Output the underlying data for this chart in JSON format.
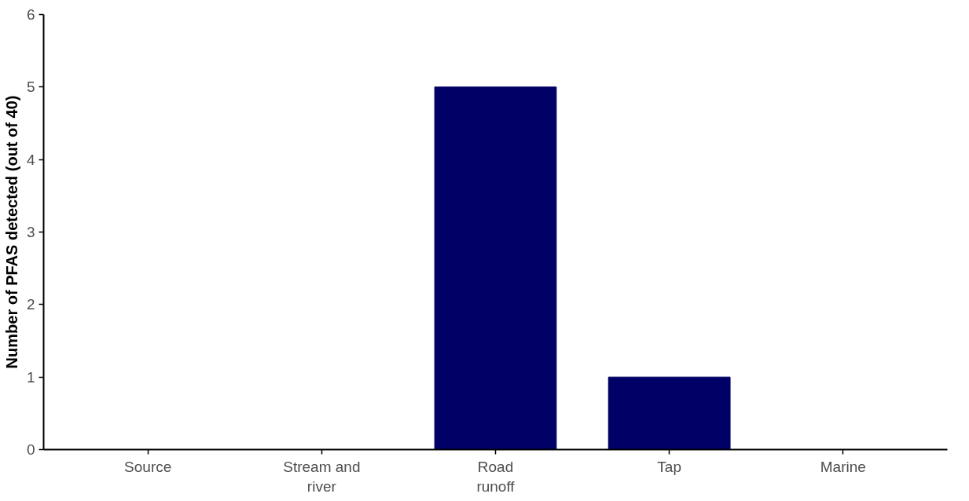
{
  "chart_data": {
    "type": "bar",
    "ylabel": "Number of PFAS detected (out of 40)",
    "categories": [
      "Source",
      "Stream and river",
      "Road runoff",
      "Tap",
      "Marine"
    ],
    "values": [
      0,
      0,
      5,
      1,
      0
    ],
    "color": "#000066",
    "ylim": [
      0,
      6
    ],
    "yticks": [
      0,
      1,
      2,
      3,
      4,
      5,
      6
    ],
    "grid": false
  }
}
